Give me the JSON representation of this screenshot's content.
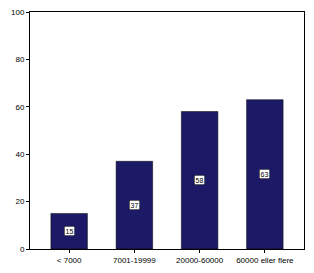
{
  "chart_data": {
    "type": "bar",
    "categories": [
      "< 7000",
      "7001-19999",
      "20000-60000",
      "60000 eller flere"
    ],
    "values": [
      15,
      37,
      58,
      63
    ],
    "color": "#1c1a66",
    "ylim": [
      0,
      100
    ],
    "yticks": [
      0,
      20,
      40,
      60,
      80,
      100
    ],
    "grid": false,
    "data_labels": true
  }
}
